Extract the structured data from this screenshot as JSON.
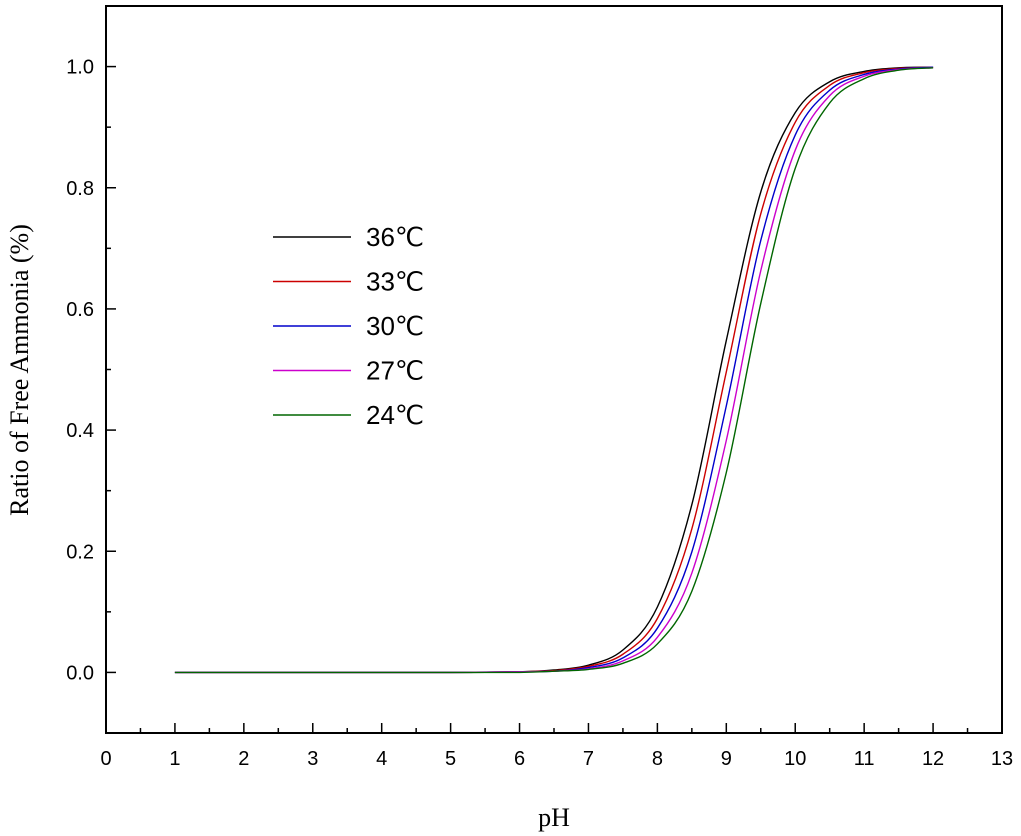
{
  "chart_data": {
    "type": "line",
    "title": "",
    "xlabel": "pH",
    "ylabel": "Ratio of Free Ammonia (%)",
    "xlim": [
      0,
      13
    ],
    "ylim": [
      -0.1,
      1.1
    ],
    "x_ticks": [
      "0",
      "1",
      "2",
      "3",
      "4",
      "5",
      "6",
      "7",
      "8",
      "9",
      "10",
      "11",
      "12",
      "13"
    ],
    "y_ticks": [
      "0.0",
      "0.2",
      "0.4",
      "0.6",
      "0.8",
      "1.0"
    ],
    "grid": false,
    "legend_position": "center-left",
    "x": [
      1,
      2,
      3,
      4,
      5,
      6,
      6.5,
      7,
      7.5,
      8,
      8.5,
      9,
      9.5,
      10,
      10.5,
      11,
      11.5,
      12
    ],
    "series": [
      {
        "name": "36℃",
        "color": "#000000",
        "values": [
          0.0,
          0.0,
          0.0,
          0.0,
          0.0,
          0.001,
          0.004,
          0.012,
          0.037,
          0.108,
          0.277,
          0.548,
          0.793,
          0.924,
          0.975,
          0.992,
          0.998,
          0.999
        ]
      },
      {
        "name": "33℃",
        "color": "#cc0000",
        "values": [
          0.0,
          0.0,
          0.0,
          0.0,
          0.0,
          0.001,
          0.003,
          0.01,
          0.03,
          0.089,
          0.237,
          0.496,
          0.757,
          0.908,
          0.969,
          0.99,
          0.997,
          0.999
        ]
      },
      {
        "name": "30℃",
        "color": "#0000cc",
        "values": [
          0.0,
          0.0,
          0.0,
          0.0,
          0.0,
          0.001,
          0.002,
          0.008,
          0.024,
          0.073,
          0.199,
          0.44,
          0.713,
          0.887,
          0.961,
          0.987,
          0.996,
          0.999
        ]
      },
      {
        "name": "27℃",
        "color": "#cc00cc",
        "values": [
          0.0,
          0.0,
          0.0,
          0.0,
          0.0,
          0.001,
          0.002,
          0.006,
          0.019,
          0.058,
          0.164,
          0.383,
          0.663,
          0.862,
          0.952,
          0.984,
          0.995,
          0.998
        ]
      },
      {
        "name": "24℃",
        "color": "#006600",
        "values": [
          0.0,
          0.0,
          0.0,
          0.0,
          0.0,
          0.0,
          0.002,
          0.005,
          0.015,
          0.047,
          0.134,
          0.33,
          0.609,
          0.832,
          0.94,
          0.98,
          0.994,
          0.998
        ]
      }
    ]
  }
}
